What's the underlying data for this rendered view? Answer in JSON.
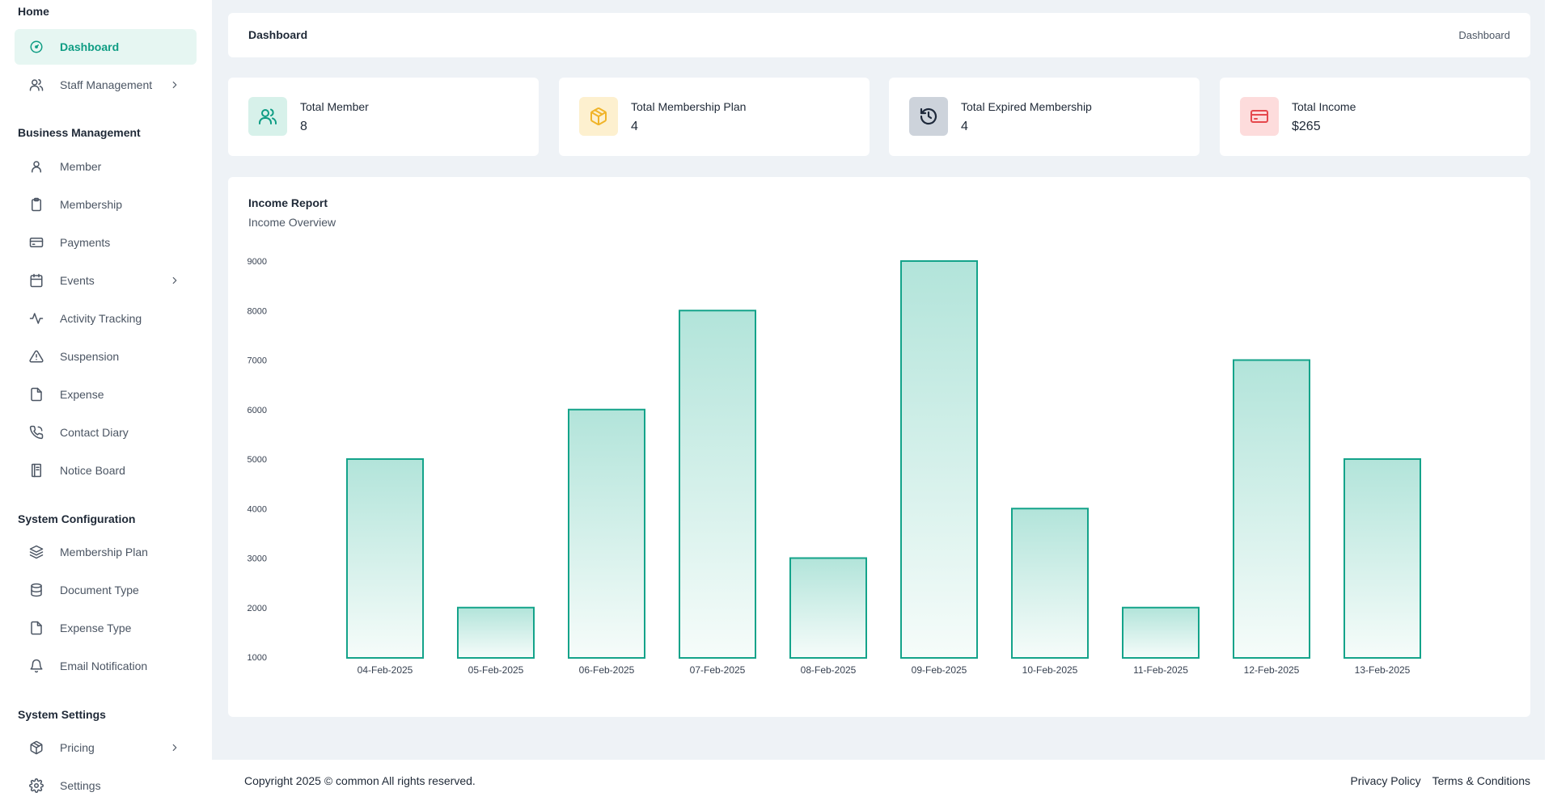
{
  "sidebar": {
    "sections": [
      {
        "title": "Home",
        "items": [
          {
            "label": "Dashboard",
            "icon": "gauge-icon",
            "active": true,
            "chevron": false
          },
          {
            "label": "Staff Management",
            "icon": "users-icon",
            "chevron": true
          }
        ]
      },
      {
        "title": "Business Management",
        "items": [
          {
            "label": "Member",
            "icon": "user-icon"
          },
          {
            "label": "Membership",
            "icon": "clipboard-icon"
          },
          {
            "label": "Payments",
            "icon": "credit-card-icon"
          },
          {
            "label": "Events",
            "icon": "calendar-icon",
            "chevron": true
          },
          {
            "label": "Activity Tracking",
            "icon": "activity-icon"
          },
          {
            "label": "Suspension",
            "icon": "alert-triangle-icon"
          },
          {
            "label": "Expense",
            "icon": "file-icon"
          },
          {
            "label": "Contact Diary",
            "icon": "phone-icon"
          },
          {
            "label": "Notice Board",
            "icon": "book-icon"
          }
        ]
      },
      {
        "title": "System Configuration",
        "items": [
          {
            "label": "Membership Plan",
            "icon": "layers-icon"
          },
          {
            "label": "Document Type",
            "icon": "database-icon"
          },
          {
            "label": "Expense Type",
            "icon": "file-icon"
          },
          {
            "label": "Email Notification",
            "icon": "bell-icon"
          }
        ]
      },
      {
        "title": "System Settings",
        "items": [
          {
            "label": "Pricing",
            "icon": "package-icon",
            "chevron": true
          },
          {
            "label": "Settings",
            "icon": "gear-icon"
          }
        ]
      }
    ]
  },
  "header": {
    "title": "Dashboard",
    "breadcrumb": "Dashboard"
  },
  "stats": [
    {
      "label": "Total Member",
      "value": "8",
      "icon": "users-icon",
      "bg": "#d7f1ea",
      "color": "#0f9d84"
    },
    {
      "label": "Total Membership Plan",
      "value": "4",
      "icon": "package-icon",
      "bg": "#fdf0cf",
      "color": "#f0b429"
    },
    {
      "label": "Total Expired Membership",
      "value": "4",
      "icon": "history-icon",
      "bg": "#cdd3db",
      "color": "#1e293b"
    },
    {
      "label": "Total Income",
      "value": "$265",
      "icon": "credit-card-icon",
      "bg": "#fddcdc",
      "color": "#e5484d"
    }
  ],
  "chart": {
    "title": "Income Report",
    "subtitle": "Income Overview"
  },
  "chart_data": {
    "type": "bar",
    "categories": [
      "04-Feb-2025",
      "05-Feb-2025",
      "06-Feb-2025",
      "07-Feb-2025",
      "08-Feb-2025",
      "09-Feb-2025",
      "10-Feb-2025",
      "11-Feb-2025",
      "12-Feb-2025",
      "13-Feb-2025"
    ],
    "values": [
      5000,
      2000,
      6000,
      8000,
      3000,
      9000,
      4000,
      2000,
      7000,
      5000
    ],
    "title": "Income Report",
    "subtitle": "Income Overview",
    "yticks": [
      1000,
      2000,
      3000,
      4000,
      5000,
      6000,
      7000,
      8000,
      9000
    ],
    "ylim": [
      1000,
      9000
    ],
    "grid": false,
    "bar_color": "#14a38a"
  },
  "footer": {
    "copyright": "Copyright 2025 © common All rights reserved.",
    "links": [
      "Privacy Policy",
      "Terms & Conditions"
    ]
  }
}
